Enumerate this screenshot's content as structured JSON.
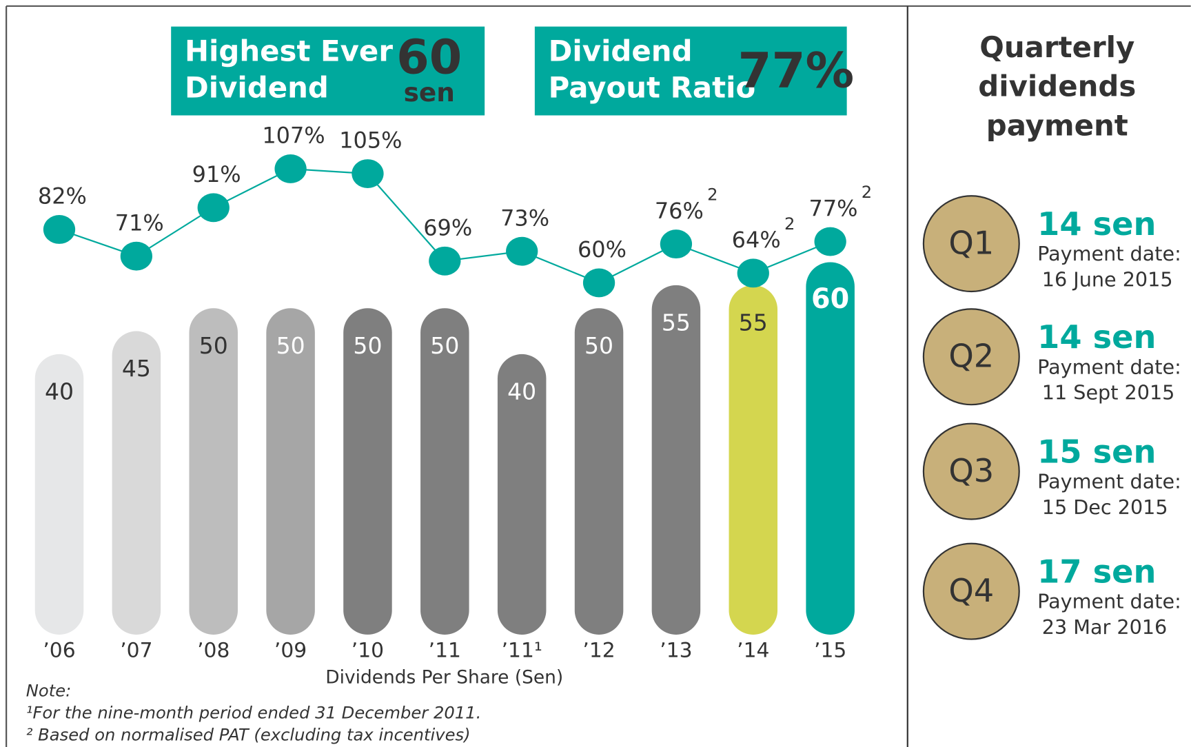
{
  "chart_data": {
    "type": "bar",
    "categories": [
      "’06",
      "’07",
      "’08",
      "’09",
      "’10",
      "’11",
      "’11¹",
      "’12",
      "’13",
      "’14",
      "’15"
    ],
    "values": [
      40,
      45,
      50,
      50,
      50,
      50,
      40,
      50,
      55,
      55,
      60
    ],
    "colors": [
      "#e6e7e8",
      "#d9d9d9",
      "#bdbdbd",
      "#a6a6a6",
      "#7f7f7f",
      "#7f7f7f",
      "#7f7f7f",
      "#7f7f7f",
      "#7f7f7f",
      "#d4d64f",
      "#00a99d"
    ],
    "label_colors": [
      "#333333",
      "#333333",
      "#333333",
      "#ffffff",
      "#ffffff",
      "#ffffff",
      "#ffffff",
      "#ffffff",
      "#ffffff",
      "#333333",
      "#ffffff"
    ],
    "ylim": [
      -21,
      84
    ],
    "x_label": "Dividends Per Share (Sen)",
    "line": {
      "name": "Dividend Payout Ratio",
      "color": "#00a99d",
      "axis": "y2",
      "values": [
        82,
        71,
        91,
        107,
        105,
        69,
        73,
        60,
        76,
        64,
        77
      ],
      "value_labels": [
        "82%",
        "71%",
        "91%",
        "107%",
        "105%",
        "69%",
        "73%",
        "60%",
        "76%",
        "64%",
        "77%"
      ],
      "label_notes": [
        null,
        null,
        null,
        null,
        null,
        null,
        null,
        null,
        "2",
        "2",
        "2"
      ]
    },
    "y2lim": [
      -85,
      114
    ]
  },
  "highlights": [
    {
      "lines": [
        "Highest Ever",
        "Dividend"
      ],
      "value": "60",
      "unit": "sen"
    },
    {
      "lines": [
        "Dividend",
        "Payout Ratio"
      ],
      "value": "77%"
    }
  ],
  "notes": [
    "Note:",
    "¹For the nine-month period ended   31 December 2011.",
    "² Based on normalised PAT (excluding tax incentives)"
  ],
  "side": {
    "title": [
      "Quarterly",
      "dividends",
      "payment"
    ],
    "quarters": [
      {
        "label": "Q1",
        "amount": "14 sen",
        "date_label": "Payment date:",
        "date": "16 June 2015"
      },
      {
        "label": "Q2",
        "amount": "14 sen",
        "date_label": "Payment date:",
        "date": "11 Sept 2015"
      },
      {
        "label": "Q3",
        "amount": "15 sen",
        "date_label": "Payment date:",
        "date": "15 Dec 2015"
      },
      {
        "label": "Q4",
        "amount": "17 sen",
        "date_label": "Payment date:",
        "date": "23 Mar 2016"
      }
    ]
  }
}
